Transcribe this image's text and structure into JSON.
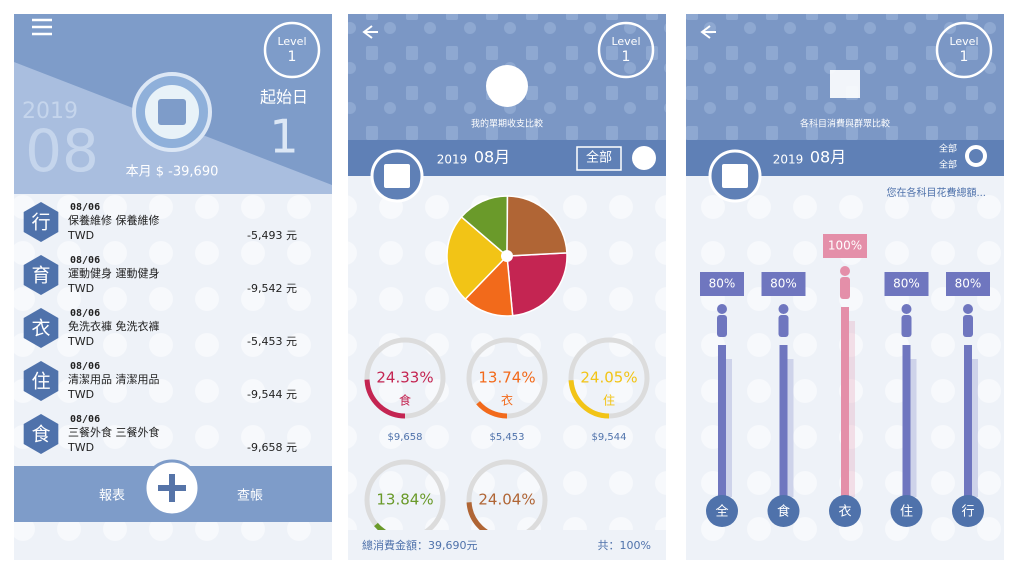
{
  "screens": [
    {
      "level_label": "Level",
      "level": "1",
      "year": "2019",
      "month": "08",
      "start_label": "起始日",
      "start_day": "1",
      "monthly_total": "本月 $ -39,690",
      "transactions": [
        {
          "icon": "行",
          "date": "08/06",
          "title": "保養維修 保養維修",
          "currency": "TWD",
          "amount": "-5,493 元"
        },
        {
          "icon": "育",
          "date": "08/06",
          "title": "運動健身 運動健身",
          "currency": "TWD",
          "amount": "-9,542 元"
        },
        {
          "icon": "衣",
          "date": "08/06",
          "title": "免洗衣褲 免洗衣褲",
          "currency": "TWD",
          "amount": "-5,453 元"
        },
        {
          "icon": "住",
          "date": "08/06",
          "title": "清潔用品 清潔用品",
          "currency": "TWD",
          "amount": "-9,544 元"
        },
        {
          "icon": "食",
          "date": "08/06",
          "title": "三餐外食 三餐外食",
          "currency": "TWD",
          "amount": "-9,658 元"
        }
      ],
      "buttons": [
        "報表",
        "查帳"
      ]
    },
    {
      "level_label": "Level",
      "level": "1",
      "caption": "我的單期收支比較",
      "year": "2019",
      "month": "08月",
      "filter": "全部",
      "chart_data": {
        "type": "pie",
        "slices": [
          {
            "name": "食",
            "value": 24.33,
            "label": "24.33%",
            "amount": "$9,658",
            "color": "#c42552"
          },
          {
            "name": "衣",
            "value": 13.74,
            "label": "13.74%",
            "amount": "$5,453",
            "color": "#f26a1b"
          },
          {
            "name": "住",
            "value": 24.05,
            "label": "24.05%",
            "amount": "$9,544",
            "color": "#f2c416"
          },
          {
            "value": 13.84,
            "label": "13.84%",
            "color": "#6a9a2a"
          },
          {
            "value": 24.04,
            "label": "24.04%",
            "color": "#b06535"
          }
        ]
      },
      "total": "總消費金額：39,690元",
      "sum": "共：100%"
    },
    {
      "level_label": "Level",
      "level": "1",
      "caption": "各科目消費與群眾比較",
      "year": "2019",
      "month": "08月",
      "filters": [
        "全部",
        "全部"
      ],
      "note": "您在各科目花費總額...",
      "chart_data": {
        "type": "bar",
        "categories": [
          "全",
          "食",
          "衣",
          "住",
          "行"
        ],
        "values": [
          80,
          80,
          100,
          80,
          80
        ],
        "value_labels": [
          "80%",
          "80%",
          "100%",
          "80%",
          "80%"
        ],
        "colors": [
          "#6f76bf",
          "#6f76bf",
          "#e48fa9",
          "#6f76bf",
          "#6f76bf"
        ],
        "ylim": [
          0,
          100
        ]
      }
    }
  ]
}
